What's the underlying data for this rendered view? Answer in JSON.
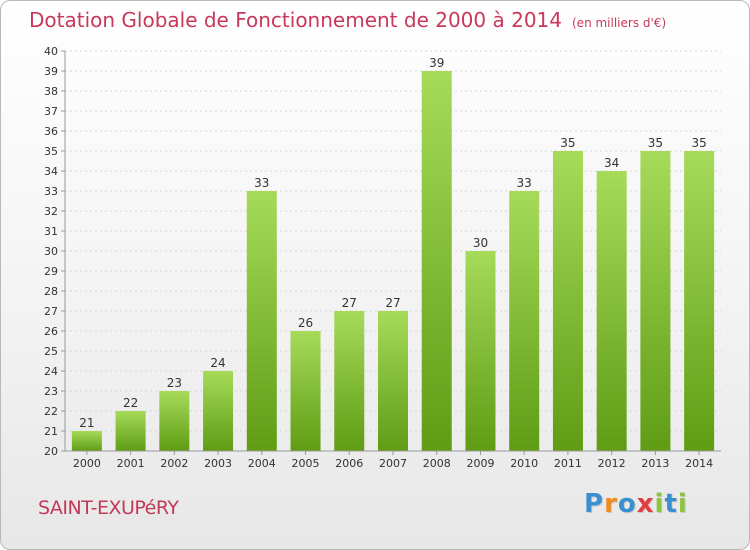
{
  "title": "Dotation Globale de Fonctionnement de 2000 à 2014",
  "subtitle": "(en milliers d'€)",
  "commune": "SAINT-EXUPéRY",
  "brand": {
    "letters": [
      "P",
      "r",
      "o",
      "x",
      "i",
      "t",
      "i"
    ],
    "colors": [
      "#3a8fd1",
      "#f08a1c",
      "#3a8fd1",
      "#e23c3c",
      "#8cc63f",
      "#3a8fd1",
      "#8cc63f"
    ]
  },
  "colors": {
    "bar_light": "#a6db5a",
    "bar_dark": "#5f9c14",
    "axis": "#9a9a9a",
    "grid": "#d6d6d6",
    "title": "#c8385a"
  },
  "chart_data": {
    "type": "bar",
    "title": "Dotation Globale de Fonctionnement de 2000 à 2014",
    "subtitle": "(en milliers d'€)",
    "categories": [
      "2000",
      "2001",
      "2002",
      "2003",
      "2004",
      "2005",
      "2006",
      "2007",
      "2008",
      "2009",
      "2010",
      "2011",
      "2012",
      "2013",
      "2014"
    ],
    "values": [
      21,
      22,
      23,
      24,
      33,
      26,
      27,
      27,
      39,
      30,
      33,
      35,
      34,
      35,
      35
    ],
    "ylim": [
      20,
      40
    ],
    "yticks": [
      20,
      21,
      22,
      23,
      24,
      25,
      26,
      27,
      28,
      29,
      30,
      31,
      32,
      33,
      34,
      35,
      36,
      37,
      38,
      39,
      40
    ],
    "xlabel": "",
    "ylabel": "",
    "grid": true
  }
}
